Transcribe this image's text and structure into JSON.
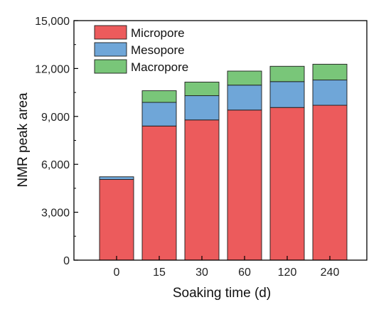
{
  "chart_data": {
    "type": "bar",
    "stacked": true,
    "categories": [
      "0",
      "15",
      "30",
      "60",
      "120",
      "240"
    ],
    "series": [
      {
        "name": "Micropore",
        "color": "#ec5b5c",
        "values": [
          5050,
          8400,
          8780,
          9400,
          9560,
          9700
        ]
      },
      {
        "name": "Mesopore",
        "color": "#6fa6d8",
        "values": [
          170,
          1480,
          1520,
          1560,
          1620,
          1580
        ]
      },
      {
        "name": "Macropore",
        "color": "#79c679",
        "values": [
          0,
          730,
          850,
          880,
          960,
          990
        ]
      }
    ],
    "xlabel": "Soaking time (d)",
    "ylabel": "NMR peak area",
    "ylim": [
      0,
      15000
    ],
    "yticks": [
      0,
      3000,
      6000,
      9000,
      12000,
      15000
    ],
    "ytick_labels": [
      "0",
      "3,000",
      "6,000",
      "9,000",
      "12,000",
      "15,000"
    ],
    "grid": false,
    "legend_position": "top-left"
  }
}
